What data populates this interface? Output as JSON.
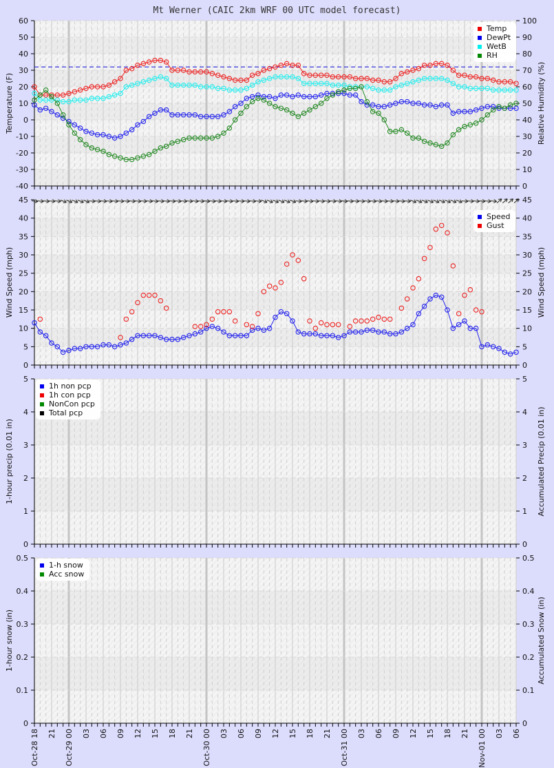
{
  "title": "Mt Werner (CAIC 2km WRF 00 UTC model forecast)",
  "x_axis": {
    "hours": 84,
    "ticks": [
      "Oct-28 18",
      "21",
      "Oct-29 00",
      "03",
      "06",
      "09",
      "12",
      "15",
      "18",
      "21",
      "Oct-30 00",
      "03",
      "06",
      "09",
      "12",
      "15",
      "18",
      "21",
      "Oct-31 00",
      "03",
      "06",
      "09",
      "12",
      "15",
      "18",
      "21",
      "Nov-01 00",
      "03",
      "06"
    ]
  },
  "chart_data": [
    {
      "type": "line",
      "title": "Temperature / Relative Humidity",
      "ylabel": "Temperature (F)",
      "y2label": "Relative Humidity (%)",
      "ylim": [
        -40,
        60
      ],
      "y2lim": [
        0,
        100
      ],
      "yticks": [
        60,
        50,
        40,
        30,
        20,
        10,
        0,
        -10,
        -20,
        -30,
        -40
      ],
      "y2ticks": [
        100,
        90,
        80,
        70,
        60,
        50,
        40,
        30,
        20,
        10,
        0
      ],
      "freezing_line": 32,
      "legend": [
        "Temp",
        "DewPt",
        "WetB",
        "RH"
      ],
      "series": [
        {
          "name": "Temp",
          "color": "#ee2222",
          "values": [
            20,
            15,
            15,
            15,
            15,
            15,
            16,
            17,
            18,
            19,
            20,
            20,
            20,
            21,
            23,
            25,
            30,
            31,
            33,
            34,
            35,
            36,
            36,
            35,
            30,
            30,
            30,
            29,
            29,
            29,
            29,
            28,
            27,
            26,
            25,
            24,
            24,
            24,
            27,
            28,
            30,
            31,
            32,
            33,
            34,
            33,
            33,
            28,
            27,
            27,
            27,
            27,
            26,
            26,
            26,
            26,
            25,
            25,
            25,
            24,
            24,
            23,
            23,
            25,
            28,
            29,
            30,
            31,
            33,
            33,
            34,
            34,
            33,
            30,
            27,
            27,
            26,
            26,
            25,
            25,
            24,
            23,
            23,
            23,
            22
          ]
        },
        {
          "name": "DewPt",
          "color": "#2222ee",
          "values": [
            9,
            6,
            7,
            5,
            3,
            1,
            -1,
            -3,
            -5,
            -7,
            -8,
            -9,
            -9,
            -10,
            -11,
            -10,
            -8,
            -6,
            -3,
            -1,
            2,
            4,
            6,
            6,
            3,
            3,
            3,
            3,
            3,
            2,
            2,
            2,
            2,
            3,
            5,
            8,
            10,
            13,
            14,
            15,
            14,
            14,
            13,
            15,
            15,
            14,
            15,
            14,
            14,
            14,
            15,
            16,
            16,
            16,
            16,
            15,
            15,
            11,
            9,
            9,
            8,
            8,
            9,
            10,
            11,
            11,
            10,
            10,
            9,
            9,
            8,
            9,
            9,
            4,
            5,
            5,
            5,
            6,
            7,
            8,
            8,
            7,
            7,
            7,
            7
          ]
        },
        {
          "name": "WetB",
          "color": "#22eeee",
          "values": [
            16,
            12,
            12,
            12,
            12,
            11,
            11,
            12,
            12,
            12,
            13,
            13,
            13,
            14,
            15,
            16,
            20,
            21,
            22,
            23,
            24,
            25,
            26,
            25,
            21,
            21,
            21,
            21,
            21,
            20,
            20,
            20,
            19,
            19,
            18,
            18,
            18,
            19,
            21,
            23,
            24,
            25,
            26,
            26,
            26,
            26,
            25,
            22,
            22,
            22,
            22,
            22,
            21,
            21,
            21,
            20,
            20,
            20,
            20,
            19,
            18,
            18,
            18,
            20,
            21,
            22,
            23,
            24,
            25,
            25,
            25,
            25,
            24,
            22,
            20,
            20,
            19,
            19,
            19,
            19,
            18,
            18,
            18,
            18,
            18
          ]
        },
        {
          "name": "RH",
          "color": "#228822",
          "y_axis": "right",
          "values": [
            52,
            55,
            58,
            54,
            50,
            43,
            37,
            32,
            28,
            25,
            23,
            22,
            21,
            19,
            18,
            17,
            16,
            16,
            17,
            18,
            19,
            21,
            23,
            24,
            26,
            27,
            28,
            29,
            29,
            29,
            29,
            29,
            30,
            32,
            35,
            40,
            44,
            48,
            51,
            53,
            52,
            50,
            48,
            47,
            46,
            44,
            42,
            44,
            46,
            48,
            50,
            53,
            55,
            57,
            58,
            59,
            59,
            60,
            51,
            45,
            44,
            40,
            33,
            33,
            34,
            32,
            29,
            29,
            27,
            26,
            25,
            24,
            26,
            31,
            34,
            36,
            37,
            38,
            40,
            43,
            46,
            48,
            47,
            49,
            50
          ]
        }
      ]
    },
    {
      "type": "line",
      "title": "Wind",
      "ylabel": "Wind Speed (mph)",
      "y2label": "Wind Speed (mph)",
      "ylim": [
        0,
        45
      ],
      "yticks": [
        45,
        40,
        35,
        30,
        25,
        20,
        15,
        10,
        5,
        0
      ],
      "legend": [
        "Speed",
        "Gust"
      ],
      "series": [
        {
          "name": "Speed",
          "color": "#2222ee",
          "values": [
            11.5,
            9,
            8,
            6,
            5,
            3.5,
            4,
            4.5,
            4.5,
            5,
            5,
            5,
            5.5,
            5.5,
            5,
            5.5,
            6,
            7,
            8,
            8,
            8,
            8,
            7.5,
            7,
            7,
            7,
            7.5,
            8,
            8.5,
            9,
            10,
            10.5,
            10,
            9,
            8,
            8,
            8,
            8,
            9.5,
            10,
            9.5,
            10,
            13,
            14.5,
            14,
            12,
            9,
            8.5,
            8.5,
            8.5,
            8,
            8,
            8,
            7.5,
            8,
            9,
            9,
            9,
            9.5,
            9.5,
            9,
            9,
            8.5,
            8.5,
            9,
            10,
            11,
            14,
            16,
            18,
            19,
            18.5,
            15,
            10,
            11,
            12,
            10,
            10,
            5,
            5.5,
            5,
            4.5,
            3.5,
            3,
            3.5
          ]
        },
        {
          "name": "Gust",
          "color": "#ee2222",
          "values": [
            null,
            12.5,
            null,
            null,
            null,
            null,
            null,
            null,
            null,
            null,
            null,
            null,
            null,
            null,
            null,
            7.5,
            12.5,
            14.5,
            17,
            19,
            19,
            19,
            17.5,
            15.5,
            null,
            null,
            null,
            null,
            10.5,
            10.5,
            11,
            12.5,
            14.5,
            14.5,
            14.5,
            12,
            null,
            11,
            10.5,
            14,
            20,
            21.5,
            21,
            22.5,
            27.5,
            30,
            28.5,
            23.5,
            12,
            10,
            11.5,
            11,
            11,
            11,
            null,
            10.5,
            12,
            12,
            12,
            12.5,
            13,
            12.5,
            12.5,
            null,
            15.5,
            18,
            21,
            23.5,
            29,
            32,
            37,
            38,
            36,
            27,
            14,
            19,
            20.5,
            15,
            14.5,
            null,
            null,
            null,
            null,
            null,
            null
          ]
        }
      ]
    },
    {
      "type": "line",
      "title": "Precipitation",
      "ylabel": "1-hour precip (0.01 in)",
      "y2label": "Accumulated Precip (0.01 in)",
      "ylim": [
        0,
        5
      ],
      "yticks": [
        5,
        4,
        3,
        2,
        1,
        0
      ],
      "legend": [
        "1h non pcp",
        "1h con pcp",
        "NonCon pcp",
        "Total pcp"
      ],
      "series": []
    },
    {
      "type": "line",
      "title": "Snow",
      "ylabel": "1-hour snow (in)",
      "y2label": "Accumulated Snow (in)",
      "ylim": [
        0,
        0.5
      ],
      "yticks": [
        "0.5",
        "0.4",
        "0.3",
        "0.2",
        "0.1",
        "0"
      ],
      "legend": [
        "1-h snow",
        "Acc snow"
      ],
      "series": []
    }
  ],
  "legends": {
    "temp": [
      {
        "label": "Temp",
        "color": "#ee0000"
      },
      {
        "label": "DewPt",
        "color": "#0000ee"
      },
      {
        "label": "WetB",
        "color": "#00eeee"
      },
      {
        "label": "RH",
        "color": "#008800"
      }
    ],
    "wind": [
      {
        "label": "Speed",
        "color": "#0000ee"
      },
      {
        "label": "Gust",
        "color": "#ee0000"
      }
    ],
    "precip": [
      {
        "label": "1h non pcp",
        "color": "#0000ee"
      },
      {
        "label": "1h con pcp",
        "color": "#ee0000"
      },
      {
        "label": "NonCon pcp",
        "color": "#008800"
      },
      {
        "label": "Total pcp",
        "color": "#000000"
      }
    ],
    "snow": [
      {
        "label": "1-h snow",
        "color": "#0000ee"
      },
      {
        "label": "Acc snow",
        "color": "#008800"
      }
    ]
  }
}
